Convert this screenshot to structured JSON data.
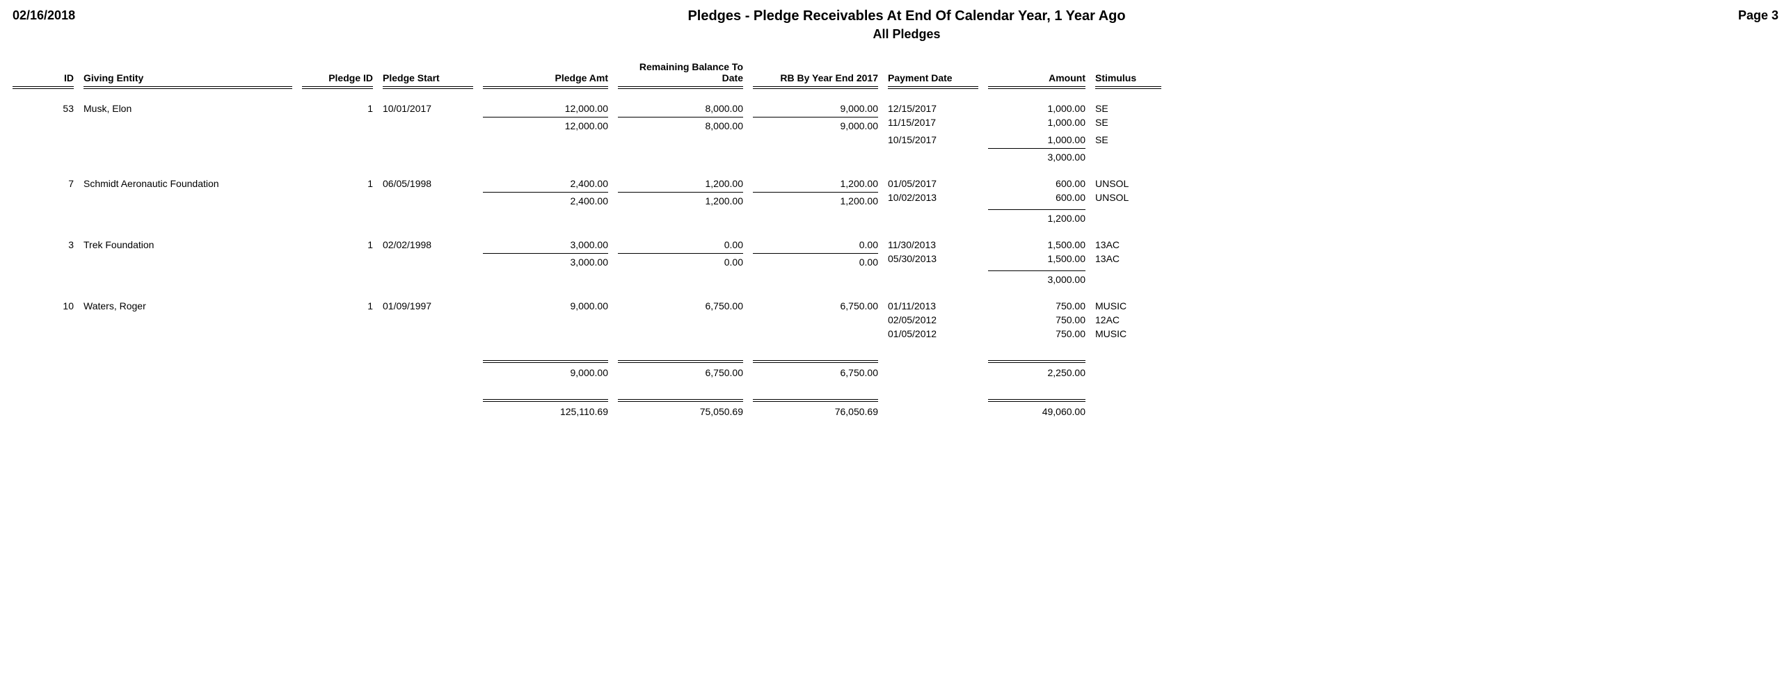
{
  "header": {
    "date": "02/16/2018",
    "title": "Pledges - Pledge Receivables At End Of Calendar Year, 1 Year Ago",
    "subtitle": "All Pledges",
    "page": "Page 3"
  },
  "columns": {
    "id": "ID",
    "giving_entity": "Giving Entity",
    "pledge_id": "Pledge ID",
    "pledge_start": "Pledge Start",
    "pledge_amt": "Pledge Amt",
    "remaining_balance": "Remaining Balance To Date",
    "rb_year_end": "RB By Year End 2017",
    "payment_date": "Payment Date",
    "amount": "Amount",
    "stimulus": "Stimulus"
  },
  "entities": [
    {
      "id": "53",
      "name": "Musk, Elon",
      "pledge_id": "1",
      "pledge_start": "10/01/2017",
      "pledge_amt": "12,000.00",
      "remaining_balance": "8,000.00",
      "rb_year_end": "9,000.00",
      "payments": [
        {
          "date": "12/15/2017",
          "amount": "1,000.00",
          "stimulus": "SE"
        },
        {
          "date": "11/15/2017",
          "amount": "1,000.00",
          "stimulus": "SE"
        },
        {
          "date": "10/15/2017",
          "amount": "1,000.00",
          "stimulus": "SE"
        }
      ],
      "subtotal": {
        "pledge_amt": "12,000.00",
        "remaining_balance": "8,000.00",
        "rb_year_end": "9,000.00",
        "amount": "3,000.00"
      }
    },
    {
      "id": "7",
      "name": "Schmidt Aeronautic Foundation",
      "pledge_id": "1",
      "pledge_start": "06/05/1998",
      "pledge_amt": "2,400.00",
      "remaining_balance": "1,200.00",
      "rb_year_end": "1,200.00",
      "payments": [
        {
          "date": "01/05/2017",
          "amount": "600.00",
          "stimulus": "UNSOL"
        },
        {
          "date": "10/02/2013",
          "amount": "600.00",
          "stimulus": "UNSOL"
        }
      ],
      "subtotal": {
        "pledge_amt": "2,400.00",
        "remaining_balance": "1,200.00",
        "rb_year_end": "1,200.00",
        "amount": "1,200.00"
      }
    },
    {
      "id": "3",
      "name": "Trek Foundation",
      "pledge_id": "1",
      "pledge_start": "02/02/1998",
      "pledge_amt": "3,000.00",
      "remaining_balance": "0.00",
      "rb_year_end": "0.00",
      "payments": [
        {
          "date": "11/30/2013",
          "amount": "1,500.00",
          "stimulus": "13AC"
        },
        {
          "date": "05/30/2013",
          "amount": "1,500.00",
          "stimulus": "13AC"
        }
      ],
      "subtotal": {
        "pledge_amt": "3,000.00",
        "remaining_balance": "0.00",
        "rb_year_end": "0.00",
        "amount": "3,000.00"
      }
    },
    {
      "id": "10",
      "name": "Waters, Roger",
      "pledge_id": "1",
      "pledge_start": "01/09/1997",
      "pledge_amt": "9,000.00",
      "remaining_balance": "6,750.00",
      "rb_year_end": "6,750.00",
      "payments": [
        {
          "date": "01/11/2013",
          "amount": "750.00",
          "stimulus": "MUSIC"
        },
        {
          "date": "02/05/2012",
          "amount": "750.00",
          "stimulus": "12AC"
        },
        {
          "date": "01/05/2012",
          "amount": "750.00",
          "stimulus": "MUSIC"
        }
      ],
      "subtotal": {
        "pledge_amt": "9,000.00",
        "remaining_balance": "6,750.00",
        "rb_year_end": "6,750.00",
        "amount": "2,250.00"
      },
      "is_last": true
    }
  ],
  "grand_total": {
    "pledge_amt": "125,110.69",
    "remaining_balance": "75,050.69",
    "rb_year_end": "76,050.69",
    "amount": "49,060.00"
  }
}
